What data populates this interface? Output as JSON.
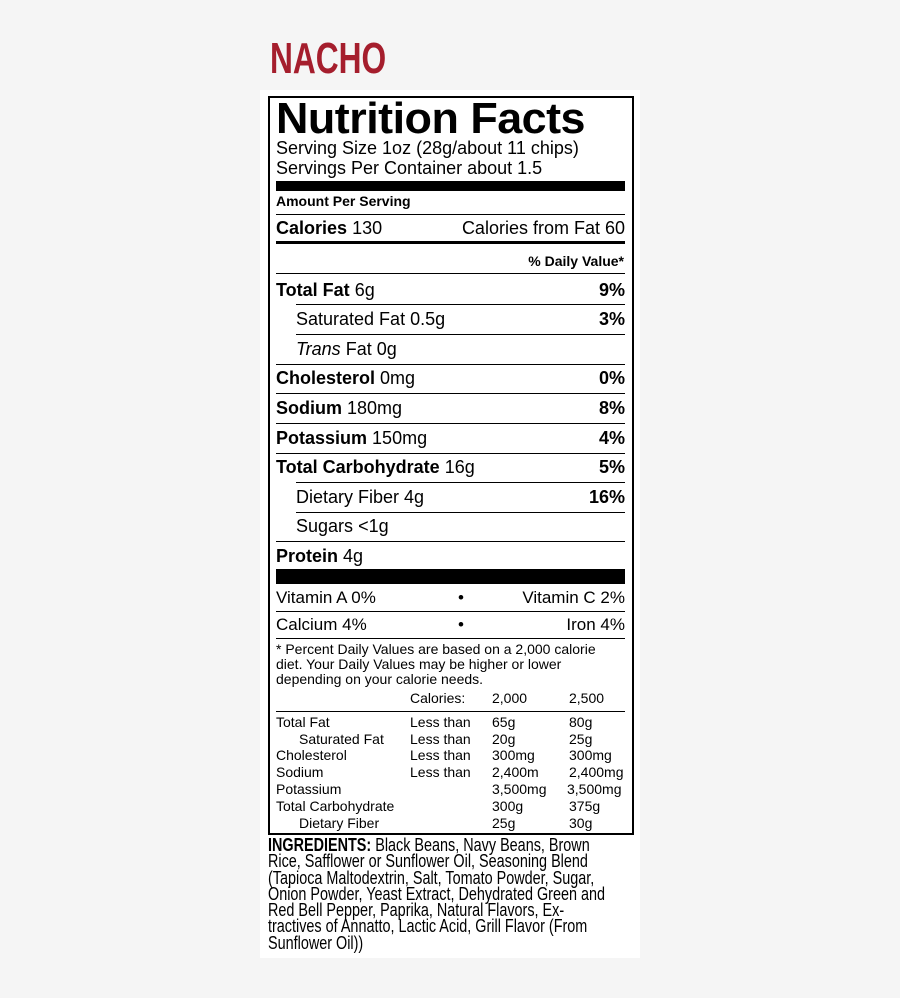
{
  "brand": "NACHO",
  "title": "Nutrition Facts",
  "serving_size": "Serving Size 1oz (28g/about 11 chips)",
  "servings_per_container": "Servings Per Container about 1.5",
  "amount_per_serving": "Amount Per Serving",
  "calories": {
    "label": "Calories",
    "value": "130",
    "from_fat": "Calories from Fat 60"
  },
  "dv_header": "% Daily Value*",
  "nutrients": [
    {
      "label": "Total Fat",
      "amount": "6g",
      "dv": "9%"
    },
    {
      "label": "Saturated Fat",
      "amount": "0.5g",
      "dv": "3%"
    },
    {
      "label": "Trans",
      "label_rest": "Fat 0g",
      "amount": "",
      "dv": ""
    },
    {
      "label": "Cholesterol",
      "amount": "0mg",
      "dv": "0%"
    },
    {
      "label": "Sodium",
      "amount": "180mg",
      "dv": "8%"
    },
    {
      "label": "Potassium",
      "amount": "150mg",
      "dv": "4%"
    },
    {
      "label": "Total Carbohydrate",
      "amount": "16g",
      "dv": "5%"
    },
    {
      "label": "Dietary Fiber",
      "amount": "4g",
      "dv": "16%"
    },
    {
      "label": "Sugars",
      "amount": "<1g",
      "dv": ""
    },
    {
      "label": "Protein",
      "amount": "4g",
      "dv": ""
    }
  ],
  "vitamins": [
    {
      "left": "Vitamin A 0%",
      "right": "Vitamin C 2%"
    },
    {
      "left": "Calcium 4%",
      "right": "Iron 4%"
    }
  ],
  "bullet": "•",
  "footnote": [
    "* Percent Daily Values are based on a 2,000 calorie",
    "diet. Your Daily Values may be higher or lower",
    "depending on your calorie needs."
  ],
  "dv_table": {
    "header": [
      "Calories:",
      "2,000",
      "2,500"
    ],
    "rows": [
      [
        "Total Fat",
        "Less than",
        "65g",
        "80g"
      ],
      [
        "Saturated Fat",
        "Less than",
        "20g",
        "25g"
      ],
      [
        "Cholesterol",
        "Less than",
        "300mg",
        "300mg"
      ],
      [
        "Sodium",
        "Less than",
        "2,400m",
        "2,400mg"
      ],
      [
        "Potassium",
        "",
        "3,500mg",
        "3,500mg"
      ],
      [
        "Total Carbohydrate",
        "",
        "300g",
        "375g"
      ],
      [
        "Dietary Fiber",
        "",
        "25g",
        "30g"
      ]
    ]
  },
  "ingredients": {
    "label": "INGREDIENTS:",
    "lines": [
      " Black Beans, Navy Beans, Brown",
      "Rice, Safflower or Sunflower Oil,  Seasoning Blend",
      "(Tapioca Maltodextrin, Salt, Tomato Powder, Sugar,",
      "Onion Powder, Yeast Extract, Dehydrated Green and",
      "Red Bell Pepper, Paprika, Natural Flavors, Ex-",
      "tractives of Annatto, Lactic Acid, Grill Flavor (From",
      "Sunflower Oil))"
    ]
  }
}
